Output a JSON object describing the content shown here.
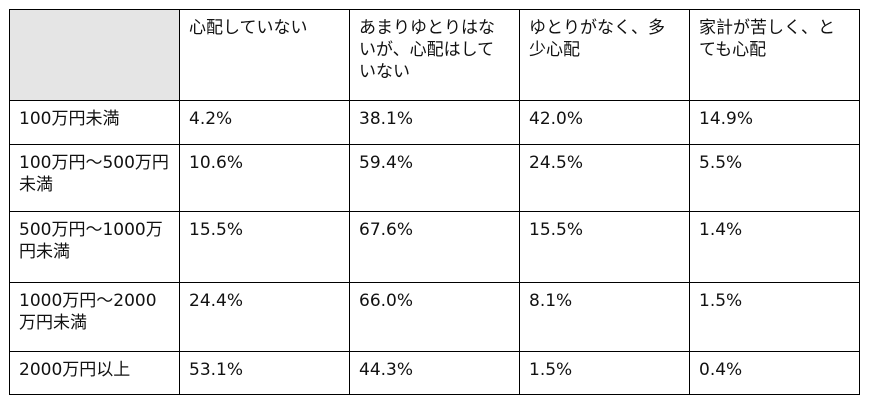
{
  "table": {
    "headers": [
      "",
      "心配していない",
      "あまりゆとりはないが、心配はしていない",
      "ゆとりがなく、多少心配",
      "家計が苦しく、とても心配"
    ],
    "rows": [
      {
        "label": "100万円未満",
        "values": [
          "4.2%",
          "38.1%",
          "42.0%",
          "14.9%"
        ]
      },
      {
        "label": "100万円〜500万円未満",
        "values": [
          "10.6%",
          "59.4%",
          "24.5%",
          "5.5%"
        ]
      },
      {
        "label": "500万円〜1000万円未満",
        "values": [
          "15.5%",
          "67.6%",
          "15.5%",
          "1.4%"
        ]
      },
      {
        "label": "1000万円〜2000万円未満",
        "values": [
          "24.4%",
          "66.0%",
          "8.1%",
          "1.5%"
        ]
      },
      {
        "label": "2000万円以上",
        "values": [
          "53.1%",
          "44.3%",
          "1.5%",
          "0.4%"
        ]
      }
    ]
  },
  "colors": {
    "header_corner_bg": "#e5e5e5",
    "border": "#000000",
    "text": "#111111"
  }
}
